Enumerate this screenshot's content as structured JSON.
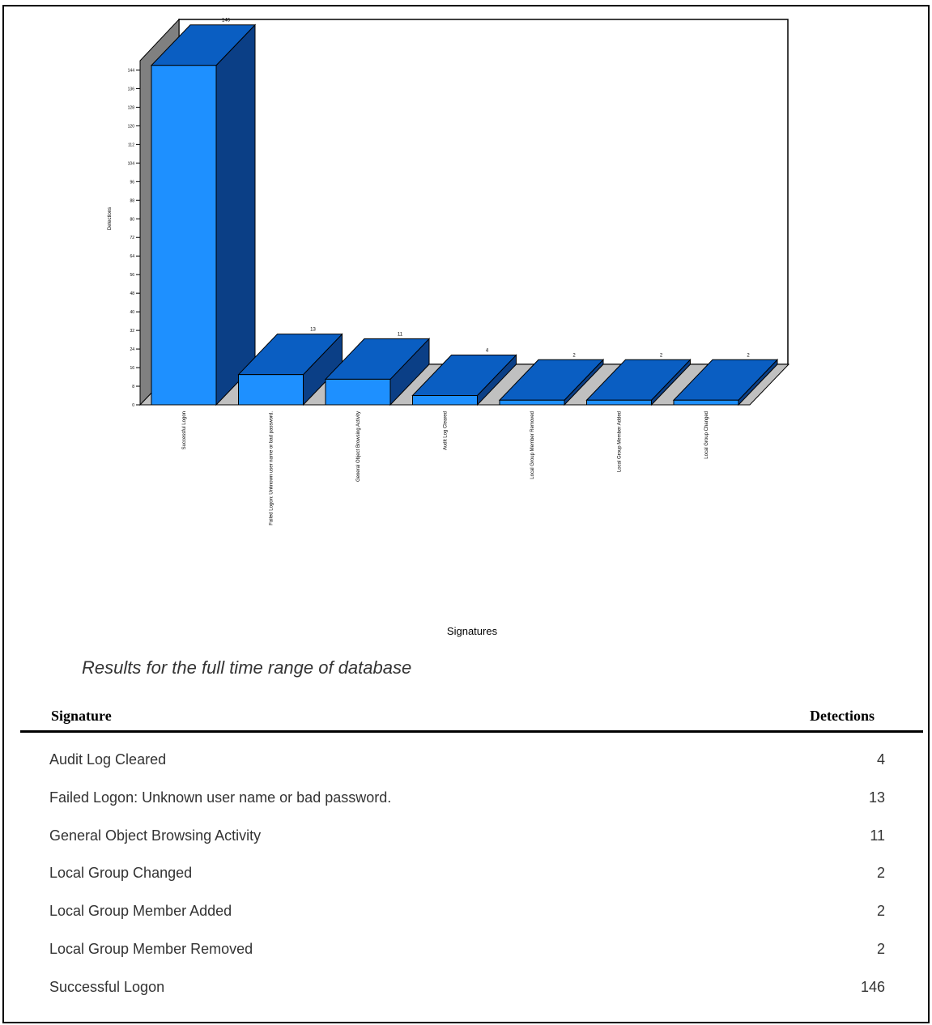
{
  "chart_data": {
    "type": "bar",
    "categories": [
      "Successful Logon",
      "Failed Logon: Unknown user name or bad password.",
      "General Object Browsing Activity",
      "Audit Log Cleared",
      "Local Group Member Removed",
      "Local Group Member Added",
      "Local Group Changed"
    ],
    "values": [
      146,
      13,
      11,
      4,
      2,
      2,
      2
    ],
    "data_labels": [
      "146",
      "13",
      "11",
      "4",
      "2",
      "2",
      "2"
    ],
    "xlabel": "Signatures",
    "ylabel": "Detections",
    "ylim": [
      0,
      148
    ],
    "yticks": [
      0,
      8,
      16,
      24,
      32,
      40,
      48,
      56,
      64,
      72,
      80,
      88,
      96,
      104,
      112,
      120,
      128,
      136,
      144
    ],
    "three_d": true,
    "grid": false,
    "colors": {
      "front": "#1E90FF",
      "top": "#0A5EC2",
      "side": "#0B3F86",
      "floor": "#C0C0C0",
      "wall": "#808080"
    }
  },
  "caption": "Results for the full time range of database",
  "table": {
    "headers": {
      "signature": "Signature",
      "detections": "Detections"
    },
    "rows": [
      {
        "signature": "Audit Log Cleared",
        "detections": "4"
      },
      {
        "signature": "Failed Logon: Unknown user name or bad password.",
        "detections": "13"
      },
      {
        "signature": "General Object Browsing Activity",
        "detections": "11"
      },
      {
        "signature": "Local Group Changed",
        "detections": "2"
      },
      {
        "signature": "Local Group Member Added",
        "detections": "2"
      },
      {
        "signature": "Local Group Member Removed",
        "detections": "2"
      },
      {
        "signature": "Successful Logon",
        "detections": "146"
      }
    ]
  }
}
